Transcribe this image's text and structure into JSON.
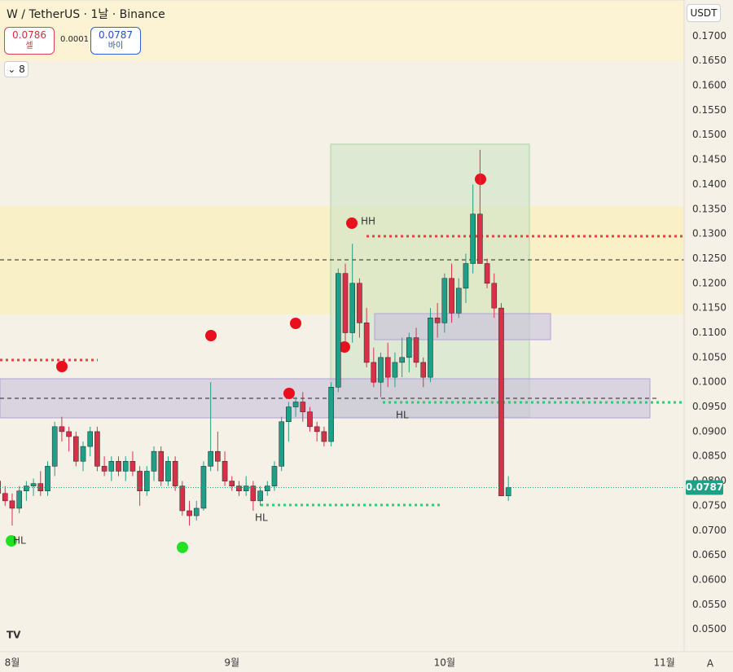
{
  "chart_data": {
    "type": "candlestick",
    "title": "W / TetherUS · 1날 · Binance",
    "sell_price": "0.0786",
    "sell_label": "셀",
    "spread": "0.0001",
    "buy_price": "0.0787",
    "buy_label": "바이",
    "indicator_count": "8",
    "currency": "USDT",
    "scale_mode": "A",
    "annotations": [
      "HH",
      "HL",
      "HL",
      "HL"
    ],
    "up_color": "#1e9f87",
    "down_color": "#d9304a",
    "open": [
      0.08,
      0.0775,
      0.076,
      0.0745,
      0.078,
      0.079,
      0.0795,
      0.078,
      0.083,
      0.091,
      0.09,
      0.089,
      0.084,
      0.087,
      0.09,
      0.083,
      0.082,
      0.084,
      0.082,
      0.084,
      0.082,
      0.078,
      0.082,
      0.086,
      0.08,
      0.084,
      0.079,
      0.074,
      0.073,
      0.0745,
      0.083,
      0.086,
      0.084,
      0.08,
      0.079,
      0.078,
      0.079,
      0.076,
      0.078,
      0.079,
      0.083,
      0.092,
      0.095,
      0.096,
      0.094,
      0.091,
      0.09,
      0.088,
      0.099,
      0.122,
      0.11,
      0.12,
      0.112,
      0.104,
      0.1,
      0.105,
      0.101,
      0.104,
      0.105,
      0.109,
      0.104,
      0.101,
      0.113,
      0.112,
      0.121,
      0.114,
      0.119,
      0.124,
      0.134,
      0.124,
      0.12,
      0.115,
      0.077
    ],
    "high": [
      0.083,
      0.079,
      0.0775,
      0.079,
      0.08,
      0.0805,
      0.082,
      0.084,
      0.092,
      0.093,
      0.091,
      0.09,
      0.088,
      0.091,
      0.091,
      0.085,
      0.085,
      0.085,
      0.085,
      0.086,
      0.083,
      0.083,
      0.087,
      0.087,
      0.085,
      0.085,
      0.08,
      0.076,
      0.076,
      0.084,
      0.1,
      0.09,
      0.086,
      0.081,
      0.08,
      0.081,
      0.08,
      0.079,
      0.08,
      0.084,
      0.093,
      0.096,
      0.097,
      0.098,
      0.095,
      0.092,
      0.091,
      0.1,
      0.123,
      0.124,
      0.128,
      0.121,
      0.115,
      0.107,
      0.106,
      0.108,
      0.106,
      0.109,
      0.11,
      0.111,
      0.105,
      0.115,
      0.116,
      0.122,
      0.124,
      0.121,
      0.126,
      0.14,
      0.147,
      0.125,
      0.122,
      0.116,
      0.081
    ],
    "low": [
      0.077,
      0.075,
      0.071,
      0.0735,
      0.076,
      0.077,
      0.077,
      0.077,
      0.081,
      0.088,
      0.086,
      0.083,
      0.082,
      0.085,
      0.082,
      0.081,
      0.08,
      0.081,
      0.08,
      0.081,
      0.075,
      0.077,
      0.08,
      0.079,
      0.079,
      0.078,
      0.073,
      0.071,
      0.072,
      0.074,
      0.082,
      0.082,
      0.079,
      0.078,
      0.077,
      0.077,
      0.074,
      0.075,
      0.077,
      0.078,
      0.082,
      0.088,
      0.093,
      0.092,
      0.09,
      0.088,
      0.087,
      0.087,
      0.098,
      0.108,
      0.108,
      0.109,
      0.103,
      0.099,
      0.097,
      0.099,
      0.099,
      0.101,
      0.102,
      0.103,
      0.099,
      0.1,
      0.109,
      0.11,
      0.112,
      0.113,
      0.116,
      0.122,
      0.124,
      0.119,
      0.113,
      0.077,
      0.076
    ],
    "close": [
      0.0775,
      0.076,
      0.0745,
      0.078,
      0.079,
      0.0795,
      0.078,
      0.083,
      0.091,
      0.09,
      0.089,
      0.084,
      0.087,
      0.09,
      0.083,
      0.082,
      0.084,
      0.082,
      0.084,
      0.082,
      0.078,
      0.082,
      0.086,
      0.08,
      0.084,
      0.079,
      0.074,
      0.073,
      0.0745,
      0.083,
      0.086,
      0.084,
      0.08,
      0.079,
      0.078,
      0.079,
      0.076,
      0.078,
      0.079,
      0.083,
      0.092,
      0.095,
      0.096,
      0.094,
      0.091,
      0.09,
      0.088,
      0.099,
      0.122,
      0.11,
      0.12,
      0.112,
      0.104,
      0.1,
      0.105,
      0.101,
      0.104,
      0.105,
      0.109,
      0.104,
      0.101,
      0.113,
      0.112,
      0.121,
      0.114,
      0.119,
      0.124,
      0.134,
      0.124,
      0.12,
      0.115,
      0.077,
      0.0787
    ],
    "last_price": {
      "value": 0.0787,
      "label": "0.0787"
    },
    "xlim": [
      0.28,
      96.8
    ],
    "xticks": [
      {
        "value": 2,
        "label": "8월"
      },
      {
        "value": 33,
        "label": "9월"
      },
      {
        "value": 63,
        "label": "10월"
      },
      {
        "value": 94,
        "label": "11월"
      }
    ],
    "ylim": [
      0.0455,
      0.1773
    ],
    "yticks": [
      {
        "value": 0.05,
        "label": "0.0500"
      },
      {
        "value": 0.055,
        "label": "0.0550"
      },
      {
        "value": 0.06,
        "label": "0.0600"
      },
      {
        "value": 0.065,
        "label": "0.0650"
      },
      {
        "value": 0.07,
        "label": "0.0700"
      },
      {
        "value": 0.075,
        "label": "0.0750"
      },
      {
        "value": 0.08,
        "label": "0.0800"
      },
      {
        "value": 0.085,
        "label": "0.0850"
      },
      {
        "value": 0.09,
        "label": "0.0900"
      },
      {
        "value": 0.095,
        "label": "0.0950"
      },
      {
        "value": 0.1,
        "label": "0.1000"
      },
      {
        "value": 0.105,
        "label": "0.1050"
      },
      {
        "value": 0.11,
        "label": "0.1100"
      },
      {
        "value": 0.115,
        "label": "0.1150"
      },
      {
        "value": 0.12,
        "label": "0.1200"
      },
      {
        "value": 0.125,
        "label": "0.1250"
      },
      {
        "value": 0.13,
        "label": "0.1300"
      },
      {
        "value": 0.135,
        "label": "0.1350"
      },
      {
        "value": 0.14,
        "label": "0.1400"
      },
      {
        "value": 0.145,
        "label": "0.1450"
      },
      {
        "value": 0.15,
        "label": "0.1500"
      },
      {
        "value": 0.155,
        "label": "0.1550"
      },
      {
        "value": 0.16,
        "label": "0.1600"
      },
      {
        "value": 0.165,
        "label": "0.1650"
      },
      {
        "value": 0.17,
        "label": "0.1700"
      }
    ],
    "grid": false
  }
}
